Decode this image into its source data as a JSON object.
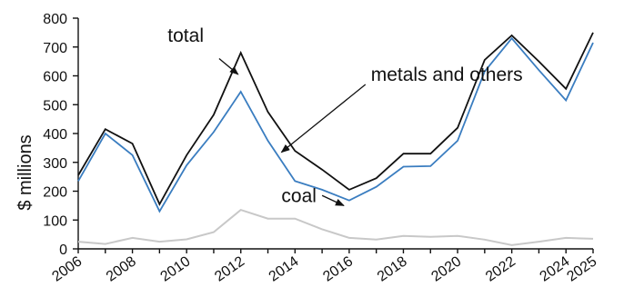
{
  "chart_data": {
    "type": "line",
    "title": "",
    "xlabel": "",
    "ylabel": "$ millions",
    "x": [
      2006,
      2007,
      2008,
      2009,
      2010,
      2011,
      2012,
      2013,
      2014,
      2015,
      2016,
      2017,
      2018,
      2019,
      2020,
      2021,
      2022,
      2023,
      2024,
      2025
    ],
    "xlim": [
      2006,
      2025
    ],
    "ylim": [
      0,
      800
    ],
    "x_ticks": [
      "2006",
      "2008",
      "2010",
      "2012",
      "2014",
      "2016",
      "2018",
      "2020",
      "2022",
      "2024",
      "2025"
    ],
    "y_ticks": [
      "0",
      "100",
      "200",
      "300",
      "400",
      "500",
      "600",
      "700",
      "800"
    ],
    "grid": false,
    "legend": "none",
    "series": [
      {
        "key": "total",
        "color": "#111111",
        "values": [
          255,
          415,
          365,
          155,
          325,
          465,
          680,
          475,
          340,
          275,
          205,
          245,
          330,
          330,
          420,
          655,
          740,
          650,
          555,
          750
        ]
      },
      {
        "key": "metals",
        "color": "#3a7dc0",
        "values": [
          235,
          400,
          325,
          130,
          290,
          405,
          545,
          375,
          235,
          205,
          168,
          215,
          285,
          287,
          375,
          615,
          730,
          620,
          515,
          715
        ]
      },
      {
        "key": "coal",
        "color": "#c8c8c8",
        "values": [
          25,
          17,
          38,
          25,
          33,
          58,
          135,
          105,
          105,
          68,
          38,
          32,
          45,
          42,
          45,
          32,
          13,
          25,
          38,
          35
        ]
      }
    ],
    "annotations": [
      {
        "text": "total",
        "x": 2009.3,
        "y": 740,
        "arrow_from": [
          2011.2,
          660
        ],
        "arrow_to": [
          2011.9,
          605
        ]
      },
      {
        "text": "metals and others",
        "x": 2016.8,
        "y": 605,
        "arrow_from": [
          2016.6,
          570
        ],
        "arrow_to": [
          2013.5,
          335
        ]
      },
      {
        "text": "coal",
        "x": 2013.5,
        "y": 185,
        "arrow_from": [
          2015.0,
          185
        ],
        "arrow_to": [
          2015.8,
          150
        ]
      }
    ]
  }
}
